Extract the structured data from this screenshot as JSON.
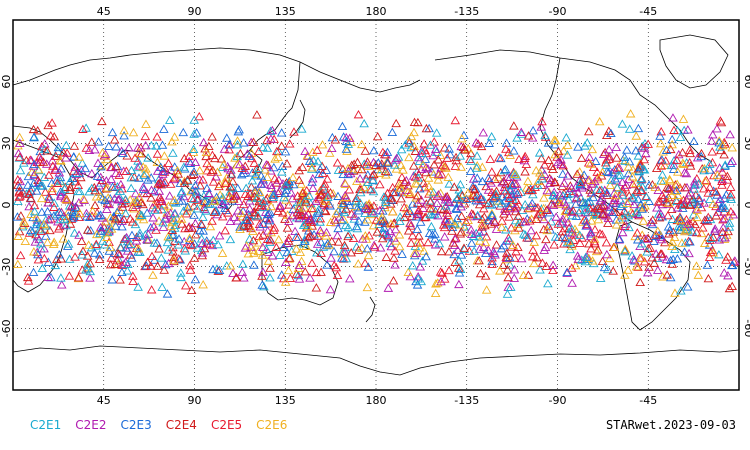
{
  "map": {
    "lon_ticks_top": [
      "45",
      "90",
      "135",
      "180",
      "-135",
      "-90",
      "-45"
    ],
    "lon_ticks_bottom": [
      "45",
      "90",
      "135",
      "180",
      "-135",
      "-90",
      "-45"
    ],
    "lat_ticks_left": [
      "60",
      "30",
      "0",
      "-30",
      "-60"
    ],
    "lat_ticks_right": [
      "60",
      "30",
      "0",
      "-30",
      "-60"
    ],
    "lon_range": [
      0,
      360
    ],
    "lat_range": [
      -90,
      90
    ],
    "grid": "dotted",
    "marker": "triangle",
    "observation_lat_band": [
      -45,
      45
    ]
  },
  "legend": [
    {
      "label": "C2E1",
      "color": "#1aaad0"
    },
    {
      "label": "C2E2",
      "color": "#b01ab0"
    },
    {
      "label": "C2E3",
      "color": "#1a6ad8"
    },
    {
      "label": "C2E4",
      "color": "#d01a1a"
    },
    {
      "label": "C2E5",
      "color": "#e81a30"
    },
    {
      "label": "C2E6",
      "color": "#f0b020"
    }
  ],
  "stamp": "STARwet.2023-09-03"
}
